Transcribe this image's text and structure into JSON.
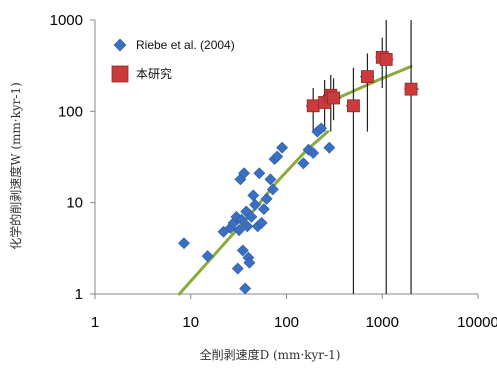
{
  "chart_data": {
    "type": "scatter",
    "title": "",
    "xlabel": "全削剥速度D (mm·kyr-1)",
    "ylabel": "化学的削剥速度W (mm·kyr-1)",
    "x_scale": "log",
    "y_scale": "log",
    "xlim": [
      1,
      10000
    ],
    "ylim": [
      1,
      1000
    ],
    "x_ticks": [
      "1",
      "10",
      "100",
      "1000",
      "10000"
    ],
    "y_ticks": [
      "1",
      "10",
      "100",
      "1000"
    ],
    "grid": false,
    "legend_position": "top-left",
    "series": [
      {
        "name": "Riebe et al. (2004)",
        "marker": "diamond",
        "color": "#3b6fc2",
        "points": [
          {
            "x": 8.5,
            "y": 3.6
          },
          {
            "x": 15,
            "y": 2.6
          },
          {
            "x": 22,
            "y": 4.8
          },
          {
            "x": 26,
            "y": 5.3
          },
          {
            "x": 28,
            "y": 6
          },
          {
            "x": 30,
            "y": 7
          },
          {
            "x": 32,
            "y": 5
          },
          {
            "x": 31,
            "y": 1.9
          },
          {
            "x": 33,
            "y": 18
          },
          {
            "x": 34,
            "y": 6.5
          },
          {
            "x": 35,
            "y": 3
          },
          {
            "x": 36,
            "y": 21
          },
          {
            "x": 37,
            "y": 1.15
          },
          {
            "x": 38,
            "y": 8
          },
          {
            "x": 39,
            "y": 5.5
          },
          {
            "x": 40,
            "y": 2.5
          },
          {
            "x": 41,
            "y": 2.2
          },
          {
            "x": 43,
            "y": 7
          },
          {
            "x": 45,
            "y": 12
          },
          {
            "x": 47,
            "y": 9.5
          },
          {
            "x": 50,
            "y": 5.5
          },
          {
            "x": 52,
            "y": 21
          },
          {
            "x": 55,
            "y": 6
          },
          {
            "x": 58,
            "y": 8.5
          },
          {
            "x": 62,
            "y": 11
          },
          {
            "x": 68,
            "y": 18
          },
          {
            "x": 72,
            "y": 14
          },
          {
            "x": 75,
            "y": 30
          },
          {
            "x": 80,
            "y": 32
          },
          {
            "x": 90,
            "y": 40
          },
          {
            "x": 150,
            "y": 27
          },
          {
            "x": 170,
            "y": 38
          },
          {
            "x": 190,
            "y": 35
          },
          {
            "x": 210,
            "y": 60
          },
          {
            "x": 230,
            "y": 65
          },
          {
            "x": 280,
            "y": 40
          }
        ]
      },
      {
        "name": "本研究",
        "marker": "square",
        "color": "#cc3b3b",
        "points": [
          {
            "x": 190,
            "y": 115,
            "ylo": 60,
            "yhi": 180,
            "xlo": 160,
            "xhi": 230
          },
          {
            "x": 250,
            "y": 125,
            "ylo": 60,
            "yhi": 220,
            "xlo": 210,
            "xhi": 300
          },
          {
            "x": 290,
            "y": 150,
            "ylo": 60,
            "yhi": 250,
            "xlo": 240,
            "xhi": 340
          },
          {
            "x": 310,
            "y": 140,
            "ylo": 80,
            "yhi": 230,
            "xlo": 260,
            "xhi": 370
          },
          {
            "x": 500,
            "y": 115,
            "ylo": 1,
            "yhi": 300,
            "xlo": 420,
            "xhi": 580
          },
          {
            "x": 700,
            "y": 240,
            "ylo": 60,
            "yhi": 430,
            "xlo": 590,
            "xhi": 820
          },
          {
            "x": 1000,
            "y": 390,
            "ylo": 180,
            "yhi": 640,
            "xlo": 850,
            "xhi": 1200
          },
          {
            "x": 1100,
            "y": 370,
            "ylo": 1,
            "yhi": 1000,
            "xlo": 930,
            "xhi": 1300
          },
          {
            "x": 2000,
            "y": 175,
            "ylo": 1,
            "yhi": 1000,
            "xlo": 1700,
            "xhi": 2400
          }
        ]
      }
    ],
    "trend_line": {
      "color": "#8aab3c",
      "points": [
        {
          "x": 7.6,
          "y": 1
        },
        {
          "x": 40,
          "y": 7
        },
        {
          "x": 80,
          "y": 17
        },
        {
          "x": 160,
          "y": 37
        },
        {
          "x": 270,
          "y": 60
        }
      ],
      "points2": [
        {
          "x": 180,
          "y": 105
        },
        {
          "x": 400,
          "y": 150
        },
        {
          "x": 900,
          "y": 220
        },
        {
          "x": 2000,
          "y": 310
        }
      ]
    }
  }
}
